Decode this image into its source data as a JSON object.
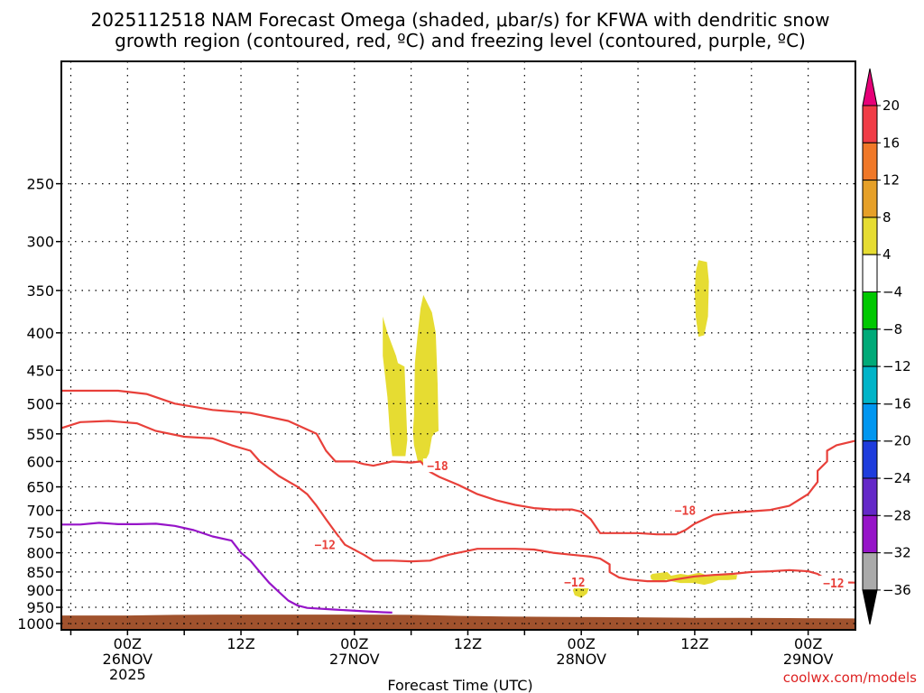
{
  "chart_data": {
    "type": "time-height cross section",
    "title_line1": "2025112518 NAM Forecast Omega (shaded, μbar/s) for KFWA with dendritic snow",
    "title_line2": "growth region (contoured, red, ºC) and freezing level (contoured, purple, ºC)",
    "xlabel": "Forecast Time (UTC)",
    "watermark": "coolwx.com/models",
    "x_range_hours": [
      -7,
      77
    ],
    "y_range_hpa": [
      170,
      1020
    ],
    "x_ticks": [
      {
        "hour": 0,
        "line1": "00Z",
        "line2": "26NOV",
        "line3": "2025"
      },
      {
        "hour": 12,
        "line1": "12Z",
        "line2": "",
        "line3": ""
      },
      {
        "hour": 24,
        "line1": "00Z",
        "line2": "27NOV",
        "line3": ""
      },
      {
        "hour": 36,
        "line1": "12Z",
        "line2": "",
        "line3": ""
      },
      {
        "hour": 48,
        "line1": "00Z",
        "line2": "28NOV",
        "line3": ""
      },
      {
        "hour": 60,
        "line1": "12Z",
        "line2": "",
        "line3": ""
      },
      {
        "hour": 72,
        "line1": "00Z",
        "line2": "29NOV",
        "line3": ""
      }
    ],
    "y_ticks": [
      250,
      300,
      350,
      400,
      450,
      500,
      550,
      600,
      650,
      700,
      750,
      800,
      850,
      900,
      950,
      1000
    ],
    "y_tick_labels": [
      "250",
      "300",
      "350",
      "400",
      "450",
      "500",
      "550",
      "600",
      "650",
      "700",
      "750",
      "800",
      "850",
      "900",
      "950",
      "1000"
    ],
    "colorbar": {
      "labels": [
        "20",
        "16",
        "12",
        "8",
        "4",
        "−4",
        "−8",
        "−12",
        "−16",
        "−20",
        "−24",
        "−28",
        "−32",
        "−36"
      ],
      "colors": [
        "#f03c46",
        "#f07828",
        "#e6a028",
        "#e6dc32",
        "#ffffff",
        "#00c800",
        "#00aa78",
        "#00b4c8",
        "#0096f0",
        "#1e3cdc",
        "#6428c8",
        "#9614c8",
        "#aaaaaa"
      ],
      "top_arrow": "#e60078",
      "bottom_arrow": "#000000"
    },
    "series": [
      {
        "name": "-12 C isotherm",
        "color": "#e8403a",
        "label": "−12",
        "points": [
          [
            -7,
            540
          ],
          [
            -5,
            530
          ],
          [
            -2,
            528
          ],
          [
            1,
            532
          ],
          [
            3,
            545
          ],
          [
            6,
            555
          ],
          [
            9,
            558
          ],
          [
            11,
            570
          ],
          [
            13,
            580
          ],
          [
            14,
            600
          ],
          [
            16,
            628
          ],
          [
            18,
            650
          ],
          [
            19,
            665
          ],
          [
            20,
            690
          ],
          [
            21,
            720
          ],
          [
            22,
            750
          ],
          [
            23,
            780
          ],
          [
            25,
            805
          ],
          [
            26,
            820
          ],
          [
            28,
            820
          ],
          [
            30,
            822
          ],
          [
            32,
            820
          ],
          [
            33,
            812
          ],
          [
            34,
            805
          ],
          [
            35,
            800
          ],
          [
            36,
            795
          ],
          [
            37,
            790
          ],
          [
            39,
            790
          ],
          [
            41,
            790
          ],
          [
            43,
            792
          ],
          [
            45,
            800
          ],
          [
            47,
            805
          ],
          [
            49,
            810
          ],
          [
            50,
            815
          ],
          [
            51,
            830
          ],
          [
            51,
            850
          ],
          [
            52,
            865
          ],
          [
            53,
            870
          ],
          [
            55,
            875
          ],
          [
            57,
            875
          ],
          [
            58,
            870
          ],
          [
            60,
            862
          ],
          [
            62,
            858
          ],
          [
            64,
            855
          ],
          [
            66,
            850
          ],
          [
            68,
            848
          ],
          [
            70,
            845
          ],
          [
            72,
            848
          ],
          [
            73,
            855
          ],
          [
            74,
            872
          ],
          [
            75,
            878
          ],
          [
            77,
            879
          ]
        ]
      },
      {
        "name": "-18 C isotherm",
        "color": "#e8403a",
        "label": "−18",
        "points": [
          [
            -7,
            480
          ],
          [
            -4,
            480
          ],
          [
            -1,
            480
          ],
          [
            2,
            485
          ],
          [
            5,
            500
          ],
          [
            9,
            510
          ],
          [
            13,
            515
          ],
          [
            17,
            528
          ],
          [
            20,
            550
          ],
          [
            21,
            580
          ],
          [
            22,
            600
          ],
          [
            24,
            600
          ],
          [
            25,
            605
          ],
          [
            26,
            608
          ],
          [
            28,
            600
          ],
          [
            30,
            602
          ],
          [
            31,
            600
          ],
          [
            32,
            620
          ],
          [
            33,
            630
          ],
          [
            35,
            646
          ],
          [
            37,
            665
          ],
          [
            39,
            678
          ],
          [
            41,
            688
          ],
          [
            43,
            695
          ],
          [
            45,
            698
          ],
          [
            47,
            698
          ],
          [
            48,
            703
          ],
          [
            49,
            720
          ],
          [
            50,
            752
          ],
          [
            52,
            752
          ],
          [
            54,
            752
          ],
          [
            56,
            755
          ],
          [
            58,
            755
          ],
          [
            59,
            745
          ],
          [
            60,
            730
          ],
          [
            61,
            720
          ],
          [
            62,
            710
          ],
          [
            64,
            705
          ],
          [
            66,
            702
          ],
          [
            68,
            699
          ],
          [
            70,
            690
          ],
          [
            72,
            665
          ],
          [
            73,
            640
          ],
          [
            73,
            618
          ],
          [
            74,
            600
          ],
          [
            74,
            580
          ],
          [
            75,
            570
          ],
          [
            77,
            562
          ]
        ]
      },
      {
        "name": "freezing level",
        "color": "#9614c8",
        "label": "",
        "points": [
          [
            -7,
            732
          ],
          [
            -5,
            732
          ],
          [
            -3,
            728
          ],
          [
            -1,
            731
          ],
          [
            1,
            731
          ],
          [
            3,
            730
          ],
          [
            5,
            735
          ],
          [
            7,
            745
          ],
          [
            9,
            760
          ],
          [
            11,
            770
          ],
          [
            12,
            800
          ],
          [
            13,
            820
          ],
          [
            14,
            850
          ],
          [
            15,
            880
          ],
          [
            16,
            905
          ],
          [
            17,
            930
          ],
          [
            18,
            945
          ],
          [
            19,
            952
          ],
          [
            22,
            957
          ],
          [
            25,
            962
          ],
          [
            27,
            965
          ],
          [
            28,
            966
          ]
        ]
      }
    ],
    "omega_shaded": [
      {
        "range": "4 to 8",
        "color": "#e6dc32",
        "regions": [
          [
            [
              27.0,
              380
            ],
            [
              27.5,
              400
            ],
            [
              28.4,
              430
            ],
            [
              28.6,
              440
            ],
            [
              29.3,
              445
            ],
            [
              29.4,
              480
            ],
            [
              29.6,
              560
            ],
            [
              29.4,
              590
            ],
            [
              28.0,
              590
            ],
            [
              27.8,
              560
            ],
            [
              27.5,
              490
            ],
            [
              27.0,
              430
            ],
            [
              27.0,
              400
            ]
          ],
          [
            [
              31.3,
              355
            ],
            [
              32.2,
              375
            ],
            [
              32.6,
              400
            ],
            [
              32.8,
              470
            ],
            [
              32.9,
              545
            ],
            [
              32.5,
              548
            ],
            [
              32.2,
              555
            ],
            [
              31.9,
              585
            ],
            [
              31.3,
              605
            ],
            [
              30.7,
              600
            ],
            [
              30.3,
              570
            ],
            [
              30.2,
              545
            ],
            [
              30.3,
              520
            ],
            [
              30.4,
              440
            ],
            [
              30.7,
              400
            ],
            [
              31.0,
              370
            ]
          ],
          [
            [
              60.4,
              318
            ],
            [
              61.3,
              320
            ],
            [
              61.5,
              340
            ],
            [
              61.4,
              380
            ],
            [
              61.0,
              403
            ],
            [
              60.4,
              405
            ],
            [
              60.1,
              380
            ],
            [
              60.0,
              350
            ],
            [
              60.1,
              330
            ]
          ],
          [
            [
              47.4,
              888
            ],
            [
              48.4,
              885
            ],
            [
              48.8,
              895
            ],
            [
              48.6,
              910
            ],
            [
              48.0,
              922
            ],
            [
              47.3,
              915
            ],
            [
              47.1,
              900
            ]
          ],
          [
            [
              55.5,
              855
            ],
            [
              57.1,
              850
            ],
            [
              57.5,
              860
            ],
            [
              58.5,
              855
            ],
            [
              59.3,
              858
            ],
            [
              60.5,
              852
            ],
            [
              61.2,
              858
            ],
            [
              62.2,
              855
            ],
            [
              63.3,
              857
            ],
            [
              64.5,
              858
            ],
            [
              64.4,
              870
            ],
            [
              63.5,
              872
            ],
            [
              62.5,
              872
            ],
            [
              61.8,
              880
            ],
            [
              61.0,
              885
            ],
            [
              60.0,
              880
            ],
            [
              58.5,
              880
            ],
            [
              57.5,
              875
            ],
            [
              57.0,
              870
            ],
            [
              56.2,
              878
            ],
            [
              55.4,
              870
            ],
            [
              55.3,
              860
            ]
          ]
        ]
      }
    ],
    "terrain": {
      "color": "#a0522d",
      "points": [
        [
          -7,
          975
        ],
        [
          0,
          975
        ],
        [
          5,
          973
        ],
        [
          10,
          972
        ],
        [
          15,
          972
        ],
        [
          20,
          972
        ],
        [
          25,
          972
        ],
        [
          30,
          973
        ],
        [
          35,
          976
        ],
        [
          40,
          978
        ],
        [
          45,
          979
        ],
        [
          50,
          980
        ],
        [
          55,
          981
        ],
        [
          60,
          982
        ],
        [
          65,
          982
        ],
        [
          70,
          983
        ],
        [
          77,
          984
        ]
      ]
    }
  }
}
